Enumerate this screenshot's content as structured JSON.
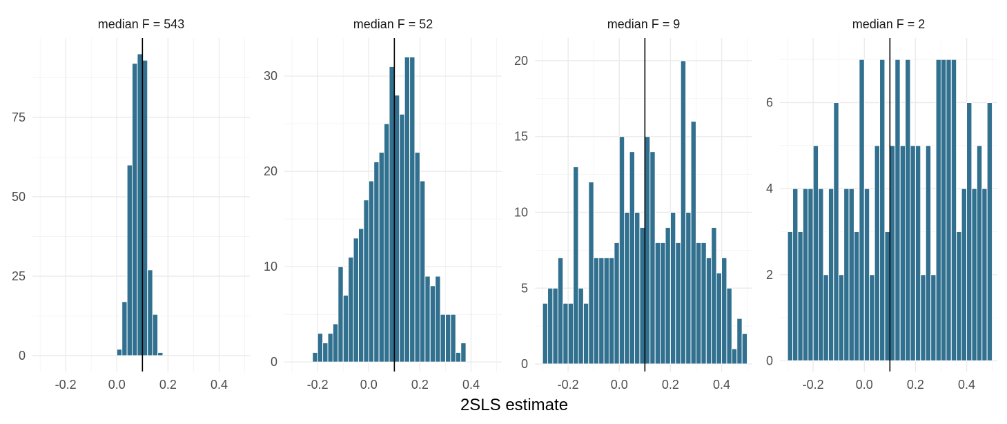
{
  "chart_data": {
    "type": "bar",
    "subtype": "faceted-histogram",
    "xlabel": "2SLS estimate",
    "ylabel": "",
    "reference_line_x": 0.1,
    "bar_color": "#31708e",
    "grid": true,
    "legend": "none",
    "panels": [
      {
        "title": "median F = 543",
        "xlim": [
          -0.33,
          0.52
        ],
        "ylim": [
          -5,
          100
        ],
        "x_ticks": [
          -0.2,
          0.0,
          0.2,
          0.4
        ],
        "x_tick_labels": [
          "-0.2",
          "0.0",
          "0.2",
          "0.4"
        ],
        "y_ticks": [
          0,
          25,
          50,
          75
        ],
        "y_tick_labels": [
          "0",
          "25",
          "50",
          "75"
        ],
        "bin_width": 0.02,
        "bin_centers": [
          0.01,
          0.03,
          0.05,
          0.07,
          0.09,
          0.11,
          0.13,
          0.15,
          0.17
        ],
        "counts": [
          2,
          17,
          60,
          92,
          95,
          93,
          27,
          13,
          1
        ]
      },
      {
        "title": "median F = 52",
        "xlim": [
          -0.33,
          0.52
        ],
        "ylim": [
          -1,
          34
        ],
        "x_ticks": [
          -0.2,
          0.0,
          0.2,
          0.4
        ],
        "x_tick_labels": [
          "-0.2",
          "0.0",
          "0.2",
          "0.4"
        ],
        "y_ticks": [
          0,
          10,
          20,
          30
        ],
        "y_tick_labels": [
          "0",
          "10",
          "20",
          "30"
        ],
        "bin_width": 0.02,
        "bin_centers": [
          -0.21,
          -0.19,
          -0.17,
          -0.15,
          -0.13,
          -0.11,
          -0.09,
          -0.07,
          -0.05,
          -0.03,
          -0.01,
          0.01,
          0.03,
          0.05,
          0.07,
          0.09,
          0.11,
          0.13,
          0.15,
          0.17,
          0.19,
          0.21,
          0.23,
          0.25,
          0.27,
          0.29,
          0.31,
          0.33,
          0.35,
          0.37
        ],
        "counts": [
          1,
          3,
          2,
          3,
          4,
          10,
          7,
          11,
          13,
          14,
          17,
          19,
          21,
          22,
          25,
          31,
          28,
          26,
          32,
          32,
          22,
          19,
          9,
          8,
          9,
          5,
          5,
          5,
          1,
          2
        ]
      },
      {
        "title": "median F = 9",
        "xlim": [
          -0.33,
          0.52
        ],
        "ylim": [
          -0.5,
          21.5
        ],
        "x_ticks": [
          -0.2,
          0.0,
          0.2,
          0.4
        ],
        "x_tick_labels": [
          "-0.2",
          "0.0",
          "0.2",
          "0.4"
        ],
        "y_ticks": [
          0,
          5,
          10,
          15,
          20
        ],
        "y_tick_labels": [
          "0",
          "5",
          "10",
          "15",
          "20"
        ],
        "bin_width": 0.02,
        "bin_centers": [
          -0.29,
          -0.27,
          -0.25,
          -0.23,
          -0.21,
          -0.19,
          -0.17,
          -0.15,
          -0.13,
          -0.11,
          -0.09,
          -0.07,
          -0.05,
          -0.03,
          -0.01,
          0.01,
          0.03,
          0.05,
          0.07,
          0.09,
          0.11,
          0.13,
          0.15,
          0.17,
          0.19,
          0.21,
          0.23,
          0.25,
          0.27,
          0.29,
          0.31,
          0.33,
          0.35,
          0.37,
          0.39,
          0.41,
          0.43,
          0.45,
          0.47,
          0.49
        ],
        "counts": [
          4,
          5,
          5,
          7,
          4,
          4,
          13,
          5,
          4,
          12,
          7,
          7,
          7,
          7,
          8,
          15,
          10,
          14,
          10,
          9,
          15,
          14,
          8,
          8,
          9,
          10,
          8,
          20,
          10,
          16,
          8,
          8,
          7,
          9,
          6,
          7,
          5,
          1,
          3,
          2
        ]
      },
      {
        "title": "median F = 2",
        "xlim": [
          -0.33,
          0.52
        ],
        "ylim": [
          -0.25,
          7.5
        ],
        "x_ticks": [
          -0.2,
          0.0,
          0.2,
          0.4
        ],
        "x_tick_labels": [
          "-0.2",
          "0.0",
          "0.2",
          "0.4"
        ],
        "y_ticks": [
          0,
          2,
          4,
          6
        ],
        "y_tick_labels": [
          "0",
          "2",
          "4",
          "6"
        ],
        "bin_width": 0.02,
        "bin_centers": [
          -0.29,
          -0.27,
          -0.25,
          -0.23,
          -0.21,
          -0.19,
          -0.17,
          -0.15,
          -0.13,
          -0.11,
          -0.09,
          -0.07,
          -0.05,
          -0.03,
          -0.01,
          0.01,
          0.03,
          0.05,
          0.07,
          0.09,
          0.11,
          0.13,
          0.15,
          0.17,
          0.19,
          0.21,
          0.23,
          0.25,
          0.27,
          0.29,
          0.31,
          0.33,
          0.35,
          0.37,
          0.39,
          0.41,
          0.43,
          0.45,
          0.47,
          0.49
        ],
        "counts": [
          3,
          4,
          3,
          4,
          4,
          5,
          4,
          2,
          4,
          6,
          2,
          4,
          4,
          3,
          7,
          4,
          2,
          5,
          7,
          3,
          5,
          7,
          5,
          7,
          5,
          5,
          2,
          5,
          2,
          7,
          7,
          7,
          7,
          3,
          4,
          6,
          4,
          5,
          4,
          6
        ]
      }
    ]
  }
}
